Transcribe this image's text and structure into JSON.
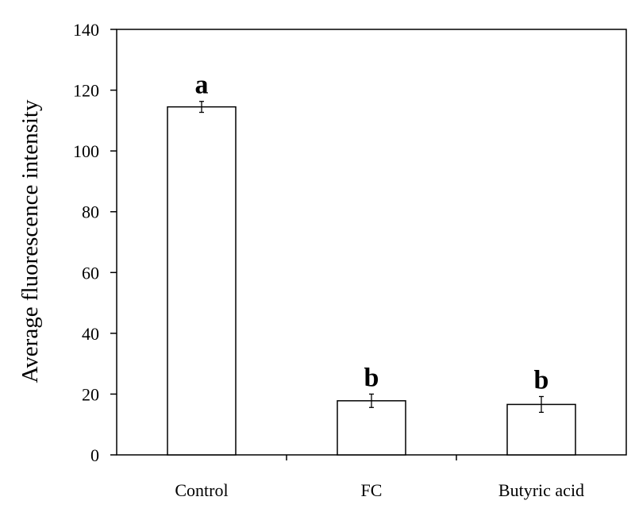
{
  "chart_data": {
    "type": "bar",
    "categories": [
      "Control",
      "FC",
      "Butyric acid"
    ],
    "values": [
      114.5,
      17.8,
      16.6
    ],
    "errors": [
      1.8,
      2.2,
      2.6
    ],
    "significance": [
      "a",
      "b",
      "b"
    ],
    "title": "",
    "xlabel": "",
    "ylabel": "Average fluorescence intensity",
    "ylim": [
      0,
      140
    ],
    "yticks": [
      0,
      20,
      40,
      60,
      80,
      100,
      120,
      140
    ],
    "ytick_labels": [
      "0",
      "20",
      "40",
      "60",
      "80",
      "100",
      "120",
      "140"
    ],
    "grid": false,
    "legend": "none",
    "bar_fill": "#ffffff",
    "bar_stroke": "#000000"
  }
}
